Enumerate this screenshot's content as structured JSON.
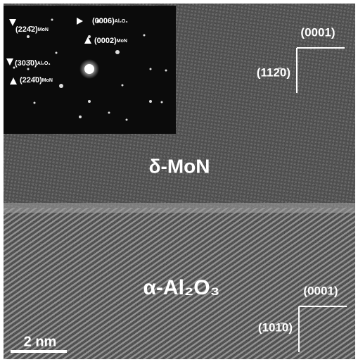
{
  "micrograph": {
    "inset": [
      {
        "index": "(224̄2)",
        "phase": "MoN"
      },
      {
        "index": "(0006)",
        "phase": "Al₂O₃"
      },
      {
        "index": "(0002)",
        "phase": "MoN"
      },
      {
        "index": "(303̄0)",
        "phase": "Al₂O₃"
      },
      {
        "index": "(224̄0)",
        "phase": "MoN"
      }
    ],
    "top_layer": "δ-MoN",
    "bottom_layer": "α-Al₂O₃",
    "top_axes": {
      "vertical": "(0001)",
      "horizontal": "(112̄0)"
    },
    "bottom_axes": {
      "vertical": "(0001)",
      "horizontal": "(101̄0)"
    },
    "scale_bar": "2 nm"
  }
}
